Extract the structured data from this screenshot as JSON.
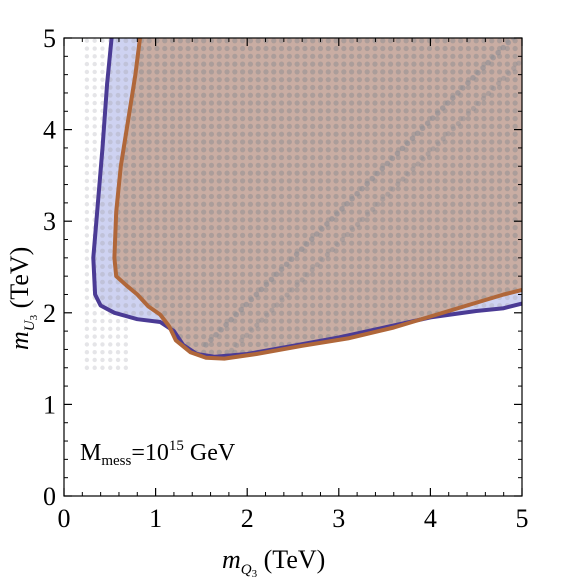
{
  "chart_data": {
    "type": "area",
    "xlabel": {
      "base": "m",
      "sub": "Q",
      "subsub": "3",
      "unit": " (TeV)"
    },
    "ylabel": {
      "base": "m",
      "sub": "U",
      "subsub": "3",
      "unit": " (TeV)"
    },
    "xlim": [
      0,
      5
    ],
    "ylim": [
      0,
      5
    ],
    "xticks": [
      "0",
      "1",
      "2",
      "3",
      "4",
      "5"
    ],
    "yticks": [
      "0",
      "1",
      "2",
      "3",
      "4",
      "5"
    ],
    "annotation": {
      "prefix": "M",
      "sub": "mess",
      "mid": "=10",
      "sup": "15",
      "suffix": " GeV"
    },
    "series": [
      {
        "color": "#4b3b95",
        "fill": "#c9cdf0",
        "points": [
          [
            0.52,
            5.0
          ],
          [
            0.47,
            4.5
          ],
          [
            0.42,
            3.8
          ],
          [
            0.37,
            3.2
          ],
          [
            0.32,
            2.6
          ],
          [
            0.34,
            2.2
          ],
          [
            0.4,
            2.08
          ],
          [
            0.55,
            2.0
          ],
          [
            0.8,
            1.93
          ],
          [
            1.05,
            1.9
          ],
          [
            1.2,
            1.8
          ],
          [
            1.3,
            1.65
          ],
          [
            1.45,
            1.55
          ],
          [
            1.65,
            1.52
          ],
          [
            2.0,
            1.55
          ],
          [
            2.5,
            1.64
          ],
          [
            3.0,
            1.73
          ],
          [
            3.5,
            1.84
          ],
          [
            4.0,
            1.95
          ],
          [
            4.5,
            2.02
          ],
          [
            4.8,
            2.05
          ],
          [
            5.0,
            2.1
          ]
        ]
      },
      {
        "color": "#b0673a",
        "fill": "#c9a89a",
        "points": [
          [
            0.83,
            5.0
          ],
          [
            0.78,
            4.6
          ],
          [
            0.7,
            4.1
          ],
          [
            0.62,
            3.6
          ],
          [
            0.57,
            3.1
          ],
          [
            0.55,
            2.6
          ],
          [
            0.57,
            2.4
          ],
          [
            0.68,
            2.3
          ],
          [
            0.8,
            2.2
          ],
          [
            0.92,
            2.07
          ],
          [
            1.05,
            1.98
          ],
          [
            1.15,
            1.85
          ],
          [
            1.22,
            1.7
          ],
          [
            1.38,
            1.57
          ],
          [
            1.55,
            1.51
          ],
          [
            1.75,
            1.5
          ],
          [
            2.1,
            1.55
          ],
          [
            2.6,
            1.64
          ],
          [
            3.1,
            1.72
          ],
          [
            3.6,
            1.84
          ],
          [
            4.0,
            1.96
          ],
          [
            4.4,
            2.08
          ],
          [
            4.8,
            2.2
          ],
          [
            5.0,
            2.25
          ]
        ]
      }
    ]
  }
}
